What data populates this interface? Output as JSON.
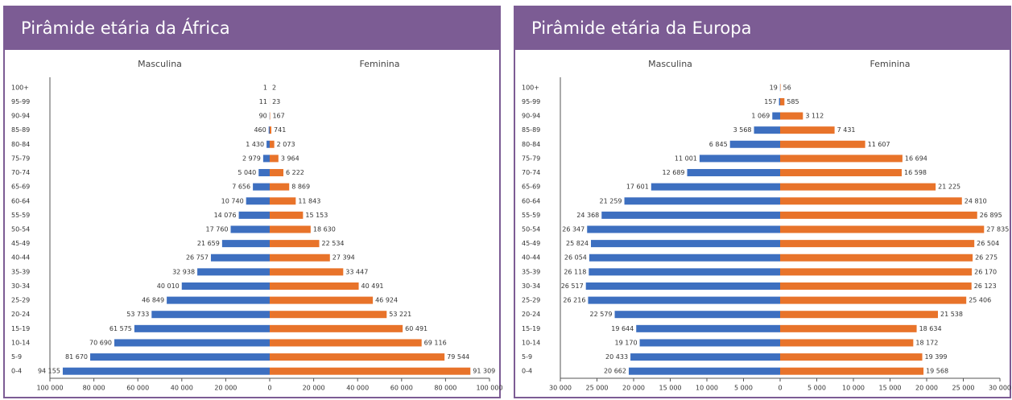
{
  "chart_data": [
    {
      "type": "pyramid",
      "title": "Pirâmide etária da África",
      "categories": [
        "100+",
        "95-99",
        "90-94",
        "85-89",
        "80-84",
        "75-79",
        "70-74",
        "65-69",
        "60-64",
        "55-59",
        "50-54",
        "45-49",
        "40-44",
        "35-39",
        "30-34",
        "25-29",
        "20-24",
        "15-19",
        "10-14",
        "5-9",
        "0-4"
      ],
      "series": [
        {
          "name": "Masculina",
          "color": "#3d6fc0",
          "side": "left",
          "values": [
            1,
            11,
            90,
            460,
            1430,
            2979,
            5040,
            7656,
            10740,
            14076,
            17760,
            21659,
            26757,
            32938,
            40010,
            46849,
            53733,
            61575,
            70690,
            81670,
            94155
          ],
          "value_labels": [
            "1",
            "11",
            "90",
            "460",
            "1 430",
            "2 979",
            "5 040",
            "7 656",
            "10 740",
            "14 076",
            "17 760",
            "21 659",
            "26 757",
            "32 938",
            "40 010",
            "46 849",
            "53 733",
            "61 575",
            "70 690",
            "81 670",
            "94 155"
          ]
        },
        {
          "name": "Feminina",
          "color": "#e8732a",
          "side": "right",
          "values": [
            2,
            23,
            167,
            741,
            2073,
            3964,
            6222,
            8869,
            11843,
            15153,
            18630,
            22534,
            27394,
            33447,
            40491,
            46924,
            53221,
            60491,
            69116,
            79544,
            91309
          ],
          "value_labels": [
            "2",
            "23",
            "167",
            "741",
            "2 073",
            "3 964",
            "6 222",
            "8 869",
            "11 843",
            "15 153",
            "18 630",
            "22 534",
            "27 394",
            "33 447",
            "40 491",
            "46 924",
            "53 221",
            "60 491",
            "69 116",
            "79 544",
            "91 309"
          ]
        }
      ],
      "xlim": [
        -100000,
        100000
      ],
      "xticks": [
        {
          "value": -100000,
          "label": "100 000"
        },
        {
          "value": -80000,
          "label": "80 000"
        },
        {
          "value": -60000,
          "label": "60 000"
        },
        {
          "value": -40000,
          "label": "40 000"
        },
        {
          "value": -20000,
          "label": "20 000"
        },
        0,
        {
          "value": 20000,
          "label": "20 000"
        },
        {
          "value": 40000,
          "label": "40 000"
        },
        {
          "value": 60000,
          "label": "60 000"
        },
        {
          "value": 80000,
          "label": "80 000"
        },
        {
          "value": 100000,
          "label": "100 000"
        }
      ]
    },
    {
      "type": "pyramid",
      "title": "Pirâmide etária da Europa",
      "categories": [
        "100+",
        "95-99",
        "90-94",
        "85-89",
        "80-84",
        "75-79",
        "70-74",
        "65-69",
        "60-64",
        "55-59",
        "50-54",
        "45-49",
        "40-44",
        "35-39",
        "30-34",
        "25-29",
        "20-24",
        "15-19",
        "10-14",
        "5-9",
        "0-4"
      ],
      "series": [
        {
          "name": "Masculina",
          "color": "#3d6fc0",
          "side": "left",
          "values": [
            19,
            157,
            1069,
            3568,
            6845,
            11001,
            12689,
            17601,
            21259,
            24368,
            26347,
            25824,
            26054,
            26118,
            26517,
            26216,
            22579,
            19644,
            19170,
            20433,
            20662
          ],
          "value_labels": [
            "19",
            "157",
            "1 069",
            "3 568",
            "6 845",
            "11 001",
            "12 689",
            "17 601",
            "21 259",
            "24 368",
            "26 347",
            "25 824",
            "26 054",
            "26 118",
            "26 517",
            "26 216",
            "22 579",
            "19 644",
            "19 170",
            "20 433",
            "20 662"
          ]
        },
        {
          "name": "Feminina",
          "color": "#e8732a",
          "side": "right",
          "values": [
            56,
            585,
            3112,
            7431,
            11607,
            16694,
            16598,
            21225,
            24810,
            26895,
            27835,
            26504,
            26275,
            26170,
            26123,
            25406,
            21538,
            18634,
            18172,
            19399,
            19568
          ],
          "value_labels": [
            "56",
            "585",
            "3 112",
            "7 431",
            "11 607",
            "16 694",
            "16 598",
            "21 225",
            "24 810",
            "26 895",
            "27 835",
            "26 504",
            "26 275",
            "26 170",
            "26 123",
            "25 406",
            "21 538",
            "18 634",
            "18 172",
            "19 399",
            "19 568"
          ]
        }
      ],
      "xlim": [
        -30000,
        30000
      ],
      "xticks": [
        {
          "value": -30000,
          "label": "30 000"
        },
        {
          "value": -25000,
          "label": "25 000"
        },
        {
          "value": -20000,
          "label": "20 000"
        },
        {
          "value": -15000,
          "label": "15 000"
        },
        {
          "value": -10000,
          "label": "10 000"
        },
        {
          "value": -5000,
          "label": "5 000"
        },
        0,
        {
          "value": 5000,
          "label": "5 000"
        },
        {
          "value": 10000,
          "label": "10 000"
        },
        {
          "value": 15000,
          "label": "15 000"
        },
        {
          "value": 20000,
          "label": "20 000"
        },
        {
          "value": 25000,
          "label": "25 000"
        },
        {
          "value": 30000,
          "label": "30 000"
        }
      ]
    }
  ]
}
